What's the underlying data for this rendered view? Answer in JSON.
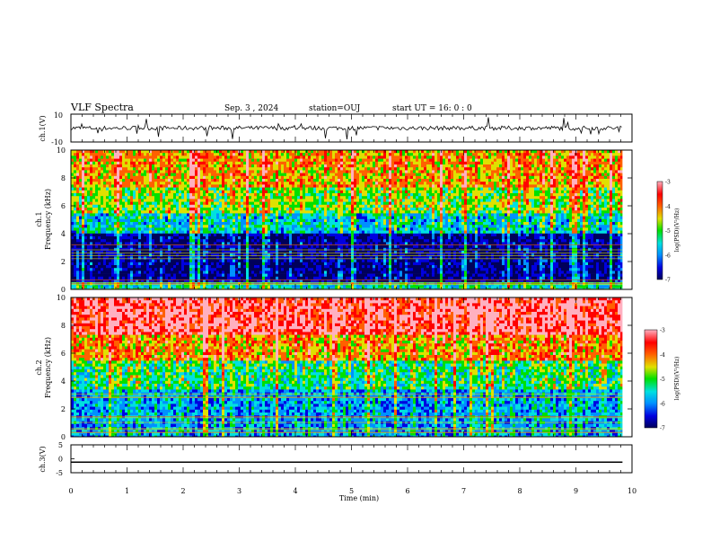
{
  "header": {
    "title": "VLF Spectra",
    "date": "Sep. 3  , 2024",
    "station": "station=OUJ",
    "start": "start  UT  =   16: 0  : 0"
  },
  "chart_data": [
    {
      "type": "line",
      "name": "ch1-waveform",
      "ylabel": "ch.1(V)",
      "ylim": [
        -10,
        10
      ],
      "yticks": [
        "10",
        "-10"
      ],
      "x_extent_min": [
        0,
        9.83
      ],
      "description_values": "noisy waveform centered at 0 V with spikes up to about ±8 V"
    },
    {
      "type": "heatmap",
      "name": "ch1-spectrogram",
      "ylabel": "ch.1\nFrequency  (kHz)",
      "ylim": [
        0,
        10
      ],
      "yticks": [
        "0",
        "2",
        "4",
        "6",
        "8",
        "10"
      ],
      "colorbar": {
        "label": "log(PSD)(V²/Hz)",
        "ticks": [
          "-3",
          "-4",
          "-5",
          "-6",
          "-7"
        ],
        "range": [
          -7,
          -3
        ]
      },
      "bands": [
        {
          "f": [
            0,
            0.6
          ],
          "level": -5.5
        },
        {
          "f": [
            0.6,
            4.2
          ],
          "level": -6.7
        },
        {
          "f": [
            4.2,
            5.5
          ],
          "level": -5.6
        },
        {
          "f": [
            5.5,
            7.5
          ],
          "level": -4.9
        },
        {
          "f": [
            7.5,
            10
          ],
          "level": -4.4
        }
      ]
    },
    {
      "type": "heatmap",
      "name": "ch2-spectrogram",
      "ylabel": "ch.2\nFrequency  (kHz)",
      "ylim": [
        0,
        10
      ],
      "yticks": [
        "0",
        "2",
        "4",
        "6",
        "8",
        "10"
      ],
      "colorbar": {
        "label": "log(PSD)(V²/Hz)",
        "ticks": [
          "-3",
          "-4",
          "-5",
          "-6",
          "-7"
        ],
        "range": [
          -7,
          -3
        ]
      },
      "bands": [
        {
          "f": [
            0,
            3.5
          ],
          "level": -5.9
        },
        {
          "f": [
            3.5,
            5.5
          ],
          "level": -5.3
        },
        {
          "f": [
            5.5,
            7.5
          ],
          "level": -4.4
        },
        {
          "f": [
            7.5,
            10
          ],
          "level": -3.7
        }
      ]
    },
    {
      "type": "line",
      "name": "ch3-waveform",
      "ylabel": "ch.3(V)",
      "ylim": [
        -5,
        5
      ],
      "yticks": [
        "5",
        "0",
        "-5"
      ],
      "x": [
        0,
        9.83
      ],
      "y": [
        -1.2,
        -1.2
      ]
    }
  ],
  "xaxis": {
    "label": "Time  (min)",
    "range": [
      0,
      10
    ],
    "ticks": [
      "0",
      "1",
      "2",
      "3",
      "4",
      "5",
      "6",
      "7",
      "8",
      "9",
      "10"
    ]
  },
  "colors": {
    "palette": [
      "#00005a",
      "#0000e0",
      "#0090ff",
      "#00e0e0",
      "#00e000",
      "#e0e000",
      "#ff6000",
      "#ff0000",
      "#ffb0c0"
    ]
  }
}
